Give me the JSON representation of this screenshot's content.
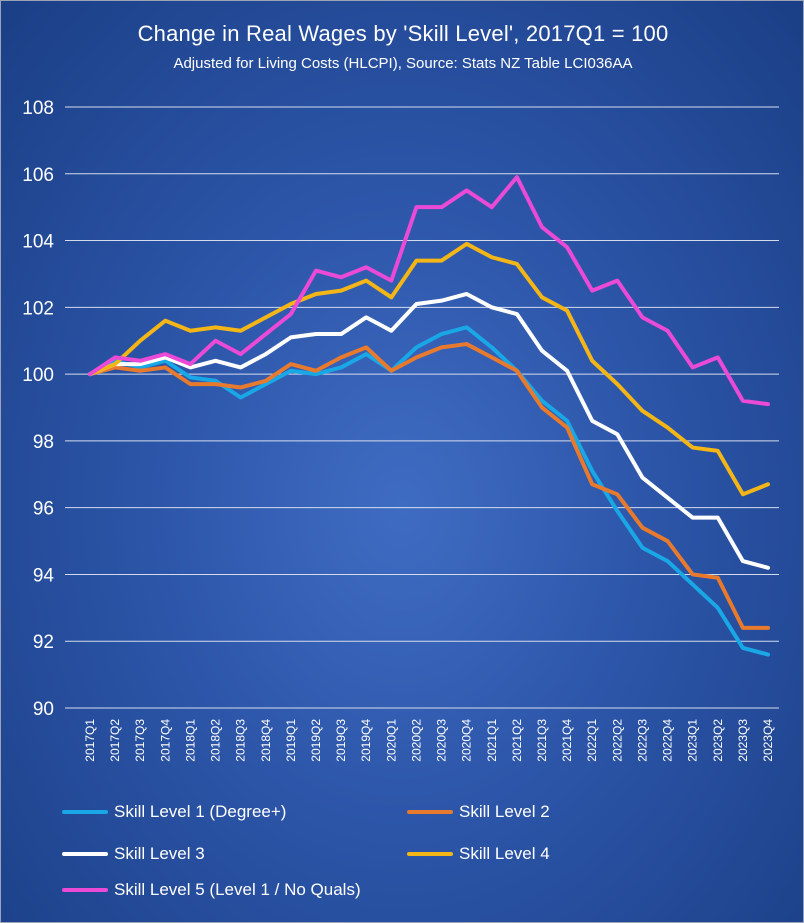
{
  "chart_data": {
    "type": "line",
    "title": "Change in Real Wages by 'Skill Level', 2017Q1 = 100",
    "subtitle": "Adjusted for Living Costs (HLCPI), Source: Stats NZ Table LCI036AA",
    "xlabel": "",
    "ylabel": "",
    "ylim": [
      90,
      108
    ],
    "yticks": [
      "90",
      "92",
      "94",
      "96",
      "98",
      "100",
      "102",
      "104",
      "106",
      "108"
    ],
    "grid": true,
    "legend_position": "bottom",
    "x": [
      "2017Q1",
      "2017Q2",
      "2017Q3",
      "2017Q4",
      "2018Q1",
      "2018Q2",
      "2018Q3",
      "2018Q4",
      "2019Q1",
      "2019Q2",
      "2019Q3",
      "2019Q4",
      "2020Q1",
      "2020Q2",
      "2020Q3",
      "2020Q4",
      "2021Q1",
      "2021Q2",
      "2021Q3",
      "2021Q4",
      "2022Q1",
      "2022Q2",
      "2022Q3",
      "2022Q4",
      "2023Q1",
      "2023Q2",
      "2023Q3",
      "2023Q4"
    ],
    "series": [
      {
        "name": "Skill Level 1 (Degree+)",
        "color": "#1aa7e6",
        "values": [
          100.0,
          100.4,
          100.2,
          100.4,
          99.9,
          99.8,
          99.3,
          99.7,
          100.1,
          100.0,
          100.2,
          100.6,
          100.1,
          100.8,
          101.2,
          101.4,
          100.8,
          100.1,
          99.2,
          98.6,
          97.1,
          95.9,
          94.8,
          94.4,
          93.7,
          93.0,
          91.8,
          91.6
        ]
      },
      {
        "name": "Skill Level 2",
        "color": "#e87a2e",
        "values": [
          100.0,
          100.2,
          100.1,
          100.2,
          99.7,
          99.7,
          99.6,
          99.8,
          100.3,
          100.1,
          100.5,
          100.8,
          100.1,
          100.5,
          100.8,
          100.9,
          100.5,
          100.1,
          99.0,
          98.4,
          96.7,
          96.4,
          95.4,
          95.0,
          94.0,
          93.9,
          92.4,
          92.4
        ]
      },
      {
        "name": "Skill Level 3",
        "color": "#ffffff",
        "values": [
          100.0,
          100.3,
          100.3,
          100.5,
          100.2,
          100.4,
          100.2,
          100.6,
          101.1,
          101.2,
          101.2,
          101.7,
          101.3,
          102.1,
          102.2,
          102.4,
          102.0,
          101.8,
          100.7,
          100.1,
          98.6,
          98.2,
          96.9,
          96.3,
          95.7,
          95.7,
          94.4,
          94.2
        ]
      },
      {
        "name": "Skill Level 4",
        "color": "#f3b616",
        "values": [
          100.0,
          100.3,
          101.0,
          101.6,
          101.3,
          101.4,
          101.3,
          101.7,
          102.1,
          102.4,
          102.5,
          102.8,
          102.3,
          103.4,
          103.4,
          103.9,
          103.5,
          103.3,
          102.3,
          101.9,
          100.4,
          99.7,
          98.9,
          98.4,
          97.8,
          97.7,
          96.4,
          96.7
        ]
      },
      {
        "name": "Skill Level 5 (Level 1 / No Quals)",
        "color": "#ea4ad6",
        "values": [
          100.0,
          100.5,
          100.4,
          100.6,
          100.3,
          101.0,
          100.6,
          101.2,
          101.8,
          103.1,
          102.9,
          103.2,
          102.8,
          105.0,
          105.0,
          105.5,
          105.0,
          105.9,
          104.4,
          103.8,
          102.5,
          102.8,
          101.7,
          101.3,
          100.2,
          100.5,
          99.2,
          99.1
        ]
      }
    ]
  }
}
